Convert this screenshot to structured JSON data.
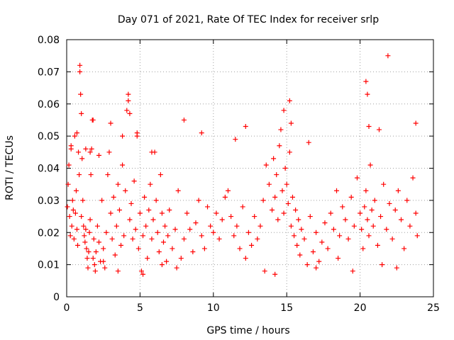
{
  "chart_data": {
    "type": "scatter",
    "title": "Day 071 of 2021, Rate Of TEC Index for receiver srlp",
    "xlabel": "GPS time / hours",
    "ylabel": "ROTI / TECUs",
    "xlim": [
      0,
      25
    ],
    "ylim": [
      0,
      0.08
    ],
    "x_ticks": [
      "0",
      "5",
      "10",
      "15",
      "20",
      "25"
    ],
    "y_ticks": [
      "0",
      "0.01",
      "0.02",
      "0.03",
      "0.04",
      "0.05",
      "0.06",
      "0.07",
      "0.08"
    ],
    "grid": true,
    "marker": "+",
    "color": "#ff0000",
    "series": [
      {
        "name": "ROTI",
        "x": [
          0.05,
          0.1,
          0.15,
          0.2,
          0.25,
          0.3,
          0.35,
          0.4,
          0.45,
          0.5,
          0.55,
          0.6,
          0.65,
          0.7,
          0.75,
          0.8,
          0.85,
          0.9,
          0.95,
          1.0,
          1.05,
          1.1,
          1.15,
          1.2,
          1.25,
          1.3,
          1.35,
          1.4,
          1.45,
          1.5,
          1.55,
          1.6,
          1.65,
          1.7,
          1.75,
          1.8,
          1.85,
          1.9,
          1.95,
          2.0,
          2.1,
          2.2,
          2.3,
          2.4,
          2.5,
          2.6,
          2.7,
          2.8,
          2.9,
          3.0,
          3.1,
          3.2,
          3.3,
          3.4,
          3.5,
          3.6,
          3.7,
          3.8,
          3.9,
          4.0,
          4.1,
          4.2,
          4.3,
          4.4,
          4.5,
          4.6,
          4.7,
          4.8,
          4.9,
          5.0,
          5.1,
          5.2,
          5.3,
          5.4,
          5.5,
          5.6,
          5.7,
          5.8,
          5.9,
          6.0,
          6.1,
          6.2,
          6.3,
          6.4,
          6.5,
          6.6,
          6.7,
          6.8,
          6.9,
          7.0,
          7.2,
          7.4,
          7.6,
          7.8,
          8.0,
          8.2,
          8.4,
          8.6,
          8.8,
          9.0,
          9.2,
          9.4,
          9.6,
          9.8,
          10.0,
          10.2,
          10.4,
          10.6,
          10.8,
          11.0,
          11.2,
          11.4,
          11.6,
          11.8,
          12.0,
          12.2,
          12.4,
          12.6,
          12.8,
          13.0,
          13.2,
          13.4,
          13.6,
          13.8,
          14.0,
          14.1,
          14.2,
          14.3,
          14.4,
          14.5,
          14.6,
          14.7,
          14.8,
          14.9,
          15.0,
          15.1,
          15.2,
          15.3,
          15.4,
          15.5,
          15.6,
          15.7,
          15.8,
          15.9,
          16.0,
          16.2,
          16.4,
          16.6,
          16.8,
          17.0,
          17.2,
          17.4,
          17.6,
          17.8,
          18.0,
          18.2,
          18.4,
          18.6,
          18.8,
          19.0,
          19.2,
          19.4,
          19.6,
          19.8,
          20.0,
          20.1,
          20.2,
          20.3,
          20.4,
          20.5,
          20.6,
          20.7,
          20.8,
          20.9,
          21.0,
          21.2,
          21.4,
          21.6,
          21.8,
          22.0,
          22.2,
          22.4,
          22.6,
          22.8,
          23.0,
          23.2,
          23.4,
          23.6,
          23.8,
          23.9,
          0.3,
          0.7,
          0.9,
          1.0,
          1.6,
          1.8,
          3.0,
          4.2,
          4.3,
          4.8,
          8.0,
          9.2,
          11.5,
          12.2,
          14.8,
          15.2,
          15.3,
          16.5,
          20.4,
          20.5,
          20.6,
          21.3,
          21.9,
          23.8,
          2.5,
          3.5,
          5.2,
          6.5,
          7.5,
          13.5,
          14.2,
          17.0,
          18.5,
          19.5,
          21.5,
          22.5,
          1.3,
          2.2,
          3.8,
          5.8
        ],
        "y": [
          0.028,
          0.035,
          0.041,
          0.025,
          0.019,
          0.047,
          0.022,
          0.03,
          0.027,
          0.018,
          0.05,
          0.026,
          0.033,
          0.021,
          0.016,
          0.045,
          0.038,
          0.07,
          0.063,
          0.025,
          0.043,
          0.03,
          0.022,
          0.019,
          0.017,
          0.021,
          0.015,
          0.012,
          0.009,
          0.014,
          0.02,
          0.024,
          0.038,
          0.046,
          0.055,
          0.012,
          0.018,
          0.01,
          0.008,
          0.014,
          0.022,
          0.017,
          0.011,
          0.03,
          0.015,
          0.009,
          0.02,
          0.038,
          0.045,
          0.026,
          0.018,
          0.031,
          0.013,
          0.022,
          0.035,
          0.027,
          0.016,
          0.041,
          0.019,
          0.033,
          0.058,
          0.061,
          0.024,
          0.029,
          0.018,
          0.036,
          0.021,
          0.051,
          0.015,
          0.026,
          0.008,
          0.019,
          0.031,
          0.022,
          0.012,
          0.027,
          0.035,
          0.018,
          0.024,
          0.045,
          0.03,
          0.02,
          0.014,
          0.038,
          0.026,
          0.017,
          0.022,
          0.011,
          0.019,
          0.027,
          0.015,
          0.021,
          0.033,
          0.012,
          0.018,
          0.026,
          0.021,
          0.014,
          0.023,
          0.03,
          0.019,
          0.015,
          0.028,
          0.022,
          0.02,
          0.026,
          0.018,
          0.024,
          0.031,
          0.033,
          0.025,
          0.019,
          0.022,
          0.015,
          0.028,
          0.012,
          0.02,
          0.016,
          0.025,
          0.018,
          0.022,
          0.03,
          0.041,
          0.035,
          0.027,
          0.043,
          0.031,
          0.038,
          0.024,
          0.047,
          0.052,
          0.033,
          0.026,
          0.04,
          0.035,
          0.029,
          0.045,
          0.022,
          0.031,
          0.019,
          0.027,
          0.016,
          0.024,
          0.013,
          0.021,
          0.018,
          0.01,
          0.025,
          0.014,
          0.02,
          0.011,
          0.017,
          0.023,
          0.015,
          0.026,
          0.021,
          0.033,
          0.019,
          0.028,
          0.024,
          0.018,
          0.031,
          0.022,
          0.037,
          0.026,
          0.021,
          0.015,
          0.028,
          0.033,
          0.024,
          0.019,
          0.041,
          0.027,
          0.022,
          0.03,
          0.016,
          0.025,
          0.035,
          0.021,
          0.029,
          0.018,
          0.027,
          0.033,
          0.024,
          0.015,
          0.03,
          0.022,
          0.037,
          0.026,
          0.019,
          0.046,
          0.051,
          0.072,
          0.057,
          0.045,
          0.055,
          0.054,
          0.063,
          0.057,
          0.05,
          0.055,
          0.051,
          0.049,
          0.053,
          0.058,
          0.061,
          0.054,
          0.048,
          0.067,
          0.063,
          0.053,
          0.052,
          0.075,
          0.054,
          0.011,
          0.008,
          0.007,
          0.01,
          0.009,
          0.008,
          0.007,
          0.009,
          0.012,
          0.008,
          0.01,
          0.009,
          0.046,
          0.044,
          0.05,
          0.045
        ]
      }
    ]
  }
}
